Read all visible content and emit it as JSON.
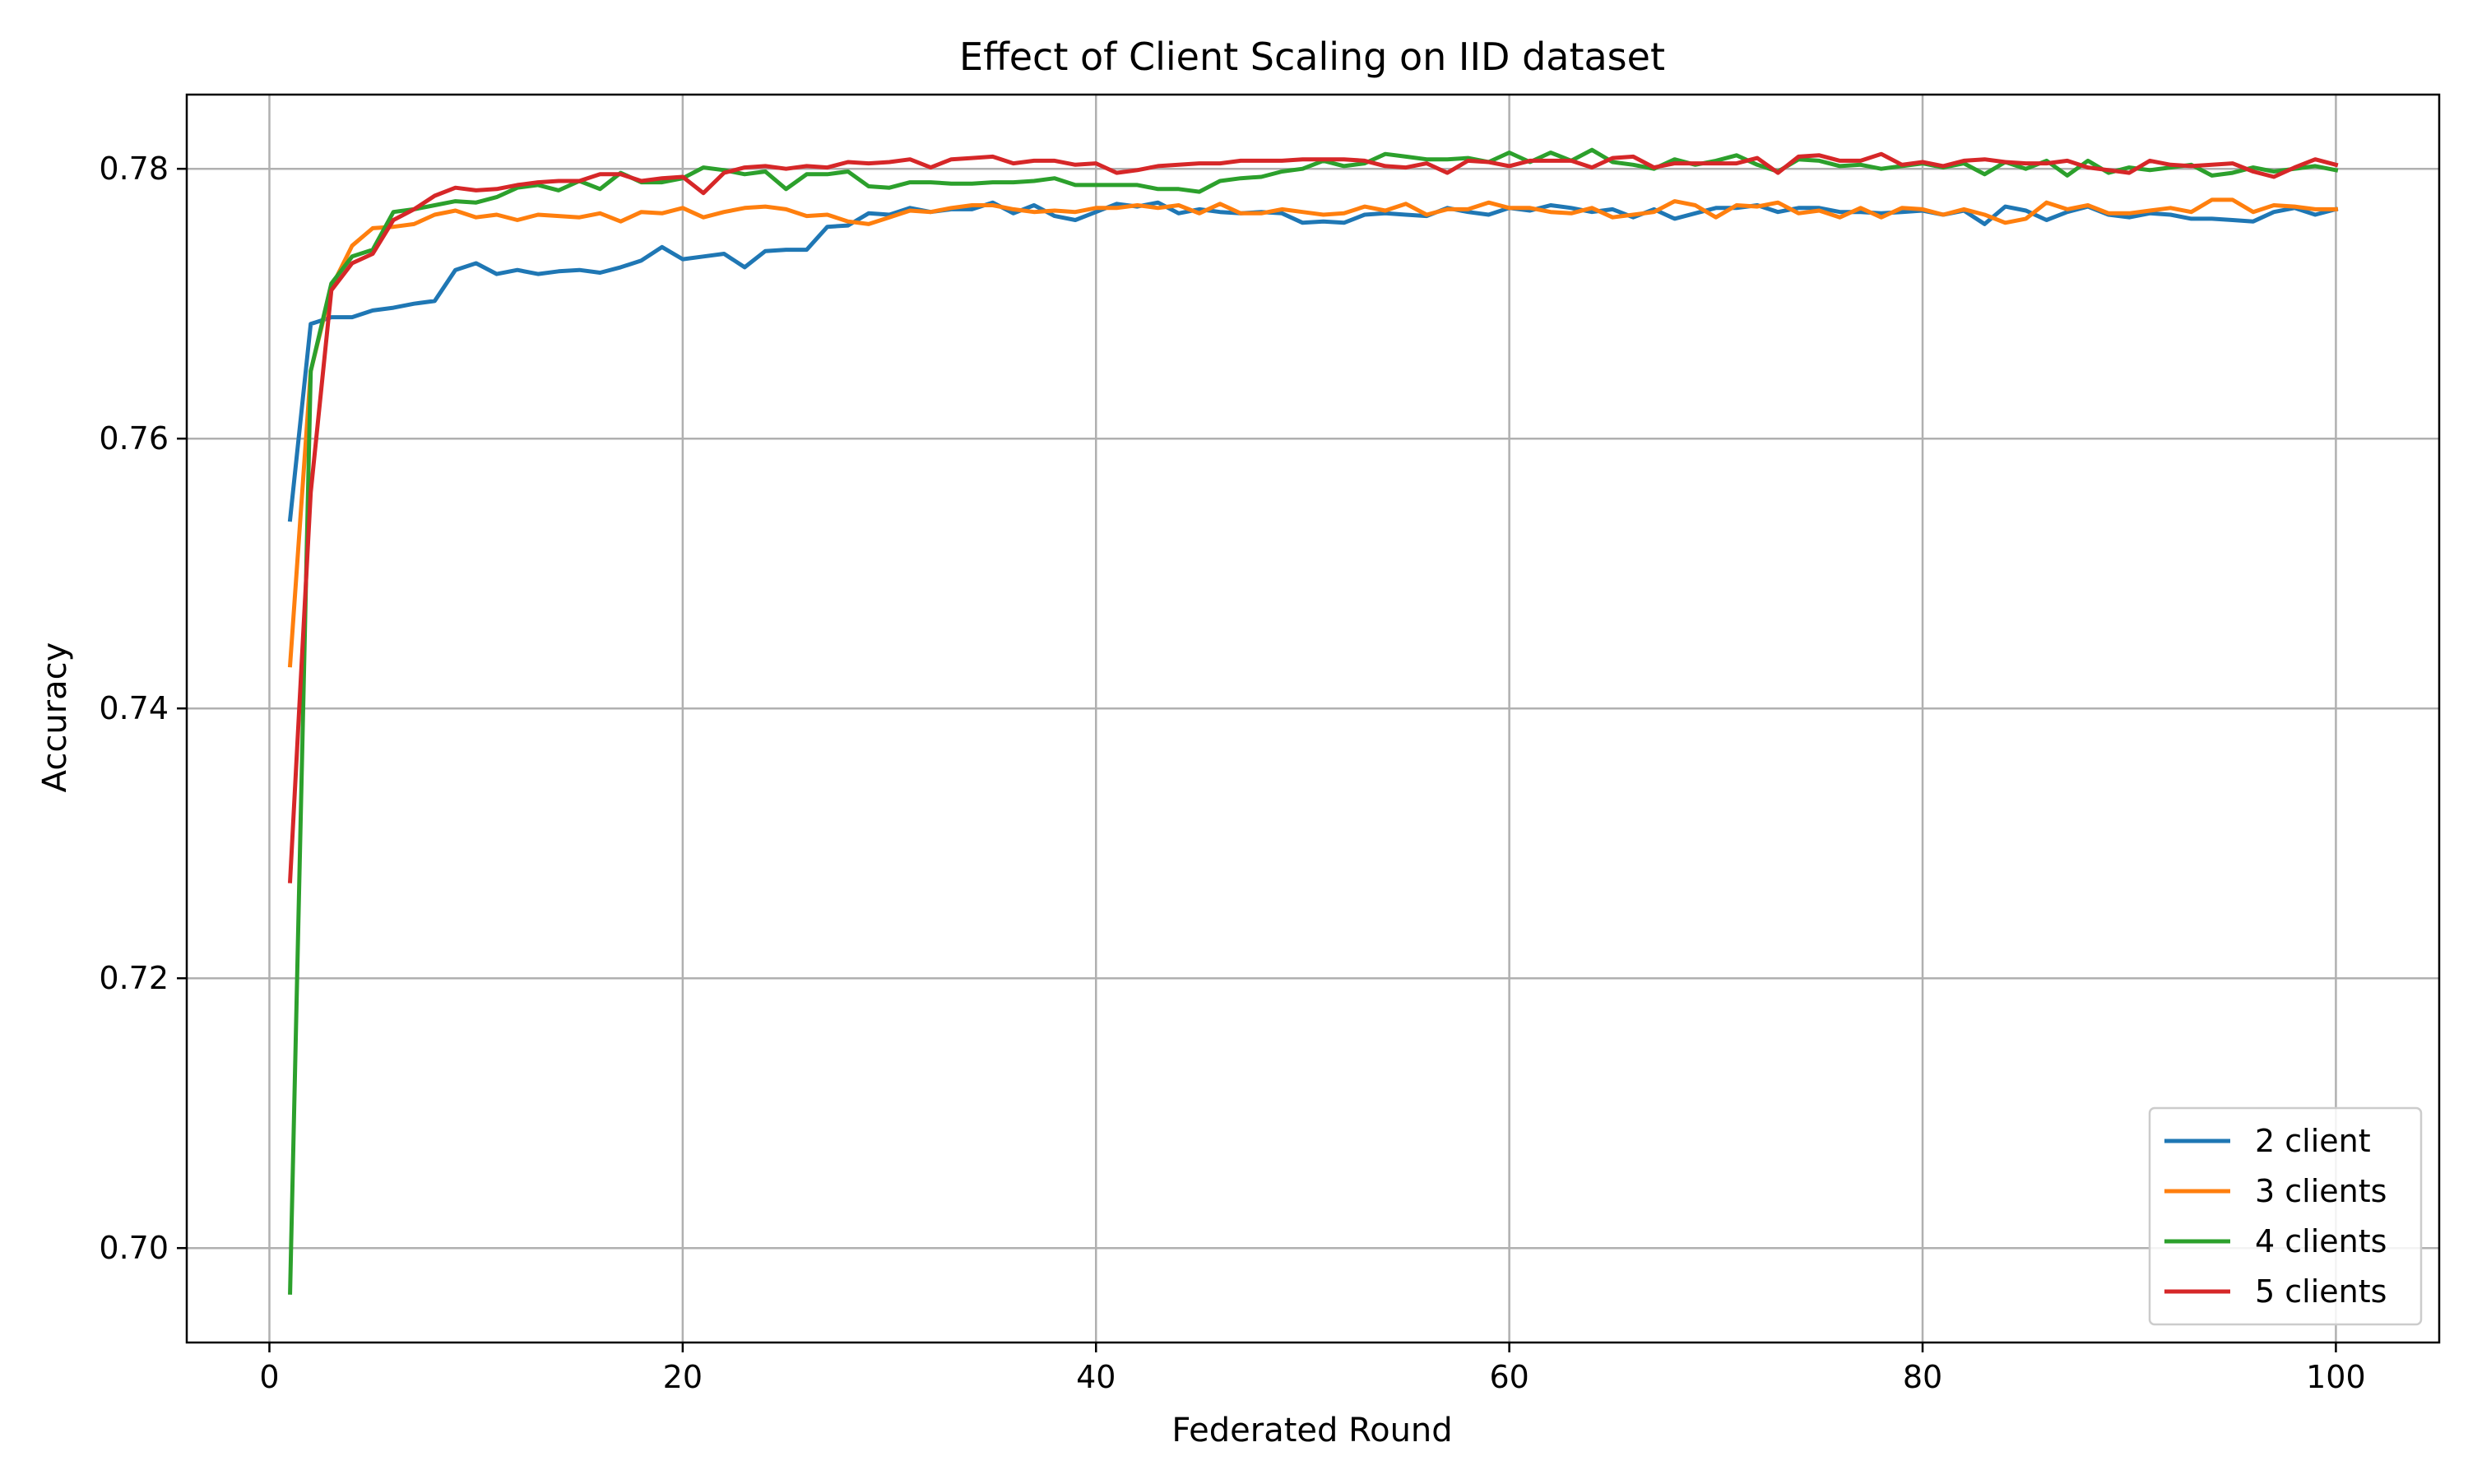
{
  "chart_data": {
    "type": "line",
    "title": "Effect of Client Scaling on IID dataset",
    "xlabel": "Federated Round",
    "ylabel": "Accuracy",
    "xlim": [
      -4,
      105
    ],
    "ylim": [
      0.693,
      0.7855
    ],
    "xticks": [
      0,
      20,
      40,
      60,
      80,
      100
    ],
    "xtick_labels": [
      "0",
      "20",
      "40",
      "60",
      "80",
      "100"
    ],
    "yticks": [
      0.7,
      0.72,
      0.74,
      0.76,
      0.78
    ],
    "ytick_labels": [
      "0.70",
      "0.72",
      "0.74",
      "0.76",
      "0.78"
    ],
    "grid": true,
    "legend_position": "bottom-right",
    "x": [
      1,
      2,
      3,
      4,
      5,
      6,
      7,
      8,
      9,
      10,
      11,
      12,
      13,
      14,
      15,
      16,
      17,
      18,
      19,
      20,
      21,
      22,
      23,
      24,
      25,
      26,
      27,
      28,
      29,
      30,
      31,
      32,
      33,
      34,
      35,
      36,
      37,
      38,
      39,
      40,
      41,
      42,
      43,
      44,
      45,
      46,
      47,
      48,
      49,
      50,
      51,
      52,
      53,
      54,
      55,
      56,
      57,
      58,
      59,
      60,
      61,
      62,
      63,
      64,
      65,
      66,
      67,
      68,
      69,
      70,
      71,
      72,
      73,
      74,
      75,
      76,
      77,
      78,
      79,
      80,
      81,
      82,
      83,
      84,
      85,
      86,
      87,
      88,
      89,
      90,
      91,
      92,
      93,
      94,
      95,
      96,
      97,
      98,
      99,
      100
    ],
    "series": [
      {
        "name": "2 client",
        "color": "#1f77b4",
        "values": [
          0.754,
          0.7685,
          0.769,
          0.769,
          0.7695,
          0.7697,
          0.77,
          0.7702,
          0.7725,
          0.773,
          0.7722,
          0.7725,
          0.7722,
          0.7724,
          0.7725,
          0.7723,
          0.7727,
          0.7732,
          0.7742,
          0.7733,
          0.7735,
          0.7737,
          0.7727,
          0.7739,
          0.774,
          0.774,
          0.7757,
          0.7758,
          0.7767,
          0.7766,
          0.7771,
          0.7768,
          0.777,
          0.777,
          0.7775,
          0.7767,
          0.7773,
          0.7765,
          0.7762,
          0.7768,
          0.7774,
          0.7772,
          0.7775,
          0.7767,
          0.777,
          0.7768,
          0.7767,
          0.7768,
          0.7767,
          0.776,
          0.7761,
          0.776,
          0.7766,
          0.7767,
          0.7766,
          0.7765,
          0.7771,
          0.7768,
          0.7766,
          0.7771,
          0.7769,
          0.7773,
          0.7771,
          0.7768,
          0.777,
          0.7764,
          0.777,
          0.7763,
          0.7767,
          0.7771,
          0.7771,
          0.7773,
          0.7768,
          0.7771,
          0.7771,
          0.7768,
          0.7768,
          0.7767,
          0.7768,
          0.7769,
          0.7766,
          0.7769,
          0.7759,
          0.7772,
          0.7769,
          0.7762,
          0.7768,
          0.7772,
          0.7766,
          0.7764,
          0.7767,
          0.7766,
          0.7763,
          0.7763,
          0.7762,
          0.7761,
          0.7768,
          0.7771,
          0.7766,
          0.777
        ]
      },
      {
        "name": "3 clients",
        "color": "#ff7f0e",
        "values": [
          0.7432,
          0.765,
          0.7712,
          0.7743,
          0.7756,
          0.7757,
          0.7759,
          0.7766,
          0.7769,
          0.7764,
          0.7766,
          0.7762,
          0.7766,
          0.7765,
          0.7764,
          0.7767,
          0.7761,
          0.7768,
          0.7767,
          0.7771,
          0.7764,
          0.7768,
          0.7771,
          0.7772,
          0.777,
          0.7765,
          0.7766,
          0.7761,
          0.7759,
          0.7764,
          0.7769,
          0.7768,
          0.7771,
          0.7773,
          0.7773,
          0.777,
          0.7768,
          0.7769,
          0.7768,
          0.7771,
          0.7771,
          0.7773,
          0.7771,
          0.7773,
          0.7767,
          0.7774,
          0.7767,
          0.7767,
          0.777,
          0.7768,
          0.7766,
          0.7767,
          0.7772,
          0.7769,
          0.7774,
          0.7766,
          0.777,
          0.777,
          0.7775,
          0.7771,
          0.7771,
          0.7768,
          0.7767,
          0.7771,
          0.7764,
          0.7766,
          0.7768,
          0.7776,
          0.7773,
          0.7764,
          0.7773,
          0.7772,
          0.7775,
          0.7767,
          0.7769,
          0.7764,
          0.7771,
          0.7764,
          0.7771,
          0.777,
          0.7766,
          0.777,
          0.7766,
          0.776,
          0.7763,
          0.7775,
          0.777,
          0.7773,
          0.7767,
          0.7767,
          0.7769,
          0.7771,
          0.7768,
          0.7777,
          0.7777,
          0.7768,
          0.7773,
          0.7772,
          0.777,
          0.777
        ]
      },
      {
        "name": "4 clients",
        "color": "#2ca02c",
        "values": [
          0.6967,
          0.765,
          0.7715,
          0.7735,
          0.774,
          0.7768,
          0.777,
          0.7773,
          0.7776,
          0.7775,
          0.7779,
          0.7786,
          0.7788,
          0.7784,
          0.7791,
          0.7785,
          0.7797,
          0.779,
          0.779,
          0.7793,
          0.7801,
          0.7799,
          0.7796,
          0.7798,
          0.7785,
          0.7796,
          0.7796,
          0.7798,
          0.7787,
          0.7786,
          0.779,
          0.779,
          0.7789,
          0.7789,
          0.779,
          0.779,
          0.7791,
          0.7793,
          0.7788,
          0.7788,
          0.7788,
          0.7788,
          0.7785,
          0.7785,
          0.7783,
          0.7791,
          0.7793,
          0.7794,
          0.7798,
          0.78,
          0.7806,
          0.7802,
          0.7804,
          0.7811,
          0.7809,
          0.7807,
          0.7807,
          0.7808,
          0.7805,
          0.7812,
          0.7805,
          0.7812,
          0.7806,
          0.7814,
          0.7805,
          0.7803,
          0.78,
          0.7807,
          0.7803,
          0.7806,
          0.781,
          0.7803,
          0.7798,
          0.7807,
          0.7806,
          0.7802,
          0.7803,
          0.78,
          0.7802,
          0.7804,
          0.7801,
          0.7804,
          0.7796,
          0.7805,
          0.78,
          0.7806,
          0.7795,
          0.7806,
          0.7797,
          0.7801,
          0.7799,
          0.7801,
          0.7803,
          0.7795,
          0.7797,
          0.7801,
          0.7798,
          0.78,
          0.7802,
          0.7799
        ]
      },
      {
        "name": "5 clients",
        "color": "#d62728",
        "values": [
          0.7272,
          0.756,
          0.771,
          0.773,
          0.7737,
          0.7762,
          0.777,
          0.778,
          0.7786,
          0.7784,
          0.7785,
          0.7788,
          0.779,
          0.7791,
          0.7791,
          0.7796,
          0.7796,
          0.7791,
          0.7793,
          0.7794,
          0.7782,
          0.7797,
          0.7801,
          0.7802,
          0.78,
          0.7802,
          0.7801,
          0.7805,
          0.7804,
          0.7805,
          0.7807,
          0.7801,
          0.7807,
          0.7808,
          0.7809,
          0.7804,
          0.7806,
          0.7806,
          0.7803,
          0.7804,
          0.7797,
          0.7799,
          0.7802,
          0.7803,
          0.7804,
          0.7804,
          0.7806,
          0.7806,
          0.7806,
          0.7807,
          0.7807,
          0.7807,
          0.7806,
          0.7802,
          0.7801,
          0.7804,
          0.7797,
          0.7806,
          0.7805,
          0.7802,
          0.7806,
          0.7806,
          0.7806,
          0.7801,
          0.7808,
          0.7809,
          0.7801,
          0.7804,
          0.7804,
          0.7804,
          0.7804,
          0.7808,
          0.7797,
          0.7809,
          0.781,
          0.7806,
          0.7806,
          0.7811,
          0.7803,
          0.7805,
          0.7802,
          0.7806,
          0.7807,
          0.7805,
          0.7804,
          0.7804,
          0.7806,
          0.7801,
          0.7799,
          0.7797,
          0.7806,
          0.7803,
          0.7802,
          0.7803,
          0.7804,
          0.7798,
          0.7794,
          0.7801,
          0.7807,
          0.7803
        ]
      }
    ]
  }
}
